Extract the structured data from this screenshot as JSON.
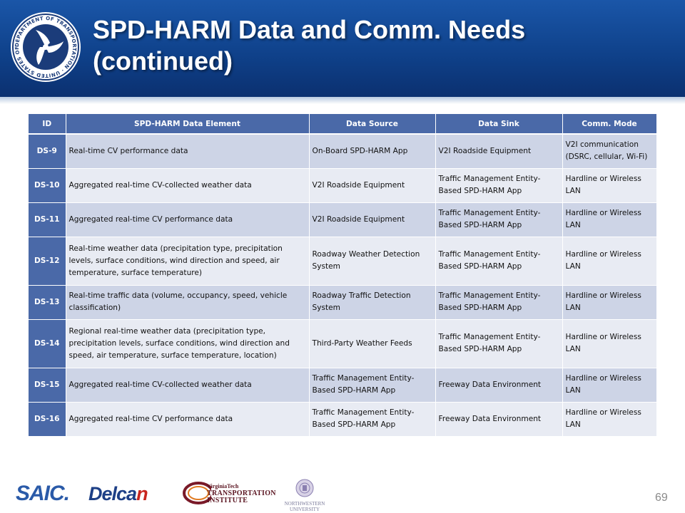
{
  "slide": {
    "title_line1": "SPD-HARM Data and Comm. Needs",
    "title_line2": "(continued)",
    "page_number": "69"
  },
  "table": {
    "headers": [
      "ID",
      "SPD-HARM Data Element",
      "Data Source",
      "Data Sink",
      "Comm. Mode"
    ],
    "rows": [
      {
        "id": "DS-9",
        "element": "Real-time CV performance data",
        "source": "On-Board SPD-HARM App",
        "sink": "V2I Roadside Equipment",
        "mode": "V2I communication (DSRC, cellular, Wi-Fi)"
      },
      {
        "id": "DS-10",
        "element": "Aggregated real-time CV-collected weather data",
        "source": "V2I Roadside Equipment",
        "sink": "Traffic Management Entity-Based SPD-HARM App",
        "mode": "Hardline or Wireless LAN"
      },
      {
        "id": "DS-11",
        "element": "Aggregated real-time CV performance data",
        "source": "V2I Roadside Equipment",
        "sink": "Traffic Management Entity-Based SPD-HARM App",
        "mode": "Hardline or Wireless LAN"
      },
      {
        "id": "DS-12",
        "element": "Real-time weather data (precipitation type, precipitation levels, surface conditions, wind direction and speed, air temperature, surface temperature)",
        "source": "Roadway Weather Detection System",
        "sink": "Traffic Management Entity-Based SPD-HARM App",
        "mode": "Hardline or Wireless LAN"
      },
      {
        "id": "DS-13",
        "element": "Real-time traffic data (volume, occupancy, speed, vehicle classification)",
        "source": "Roadway Traffic Detection System",
        "sink": "Traffic Management Entity-Based SPD-HARM App",
        "mode": "Hardline or Wireless LAN"
      },
      {
        "id": "DS-14",
        "element": "Regional real-time weather data (precipitation type, precipitation levels, surface conditions, wind direction and speed, air temperature, surface temperature, location)",
        "source": "Third-Party Weather Feeds",
        "sink": "Traffic Management Entity-Based SPD-HARM App",
        "mode": "Hardline or Wireless LAN"
      },
      {
        "id": "DS-15",
        "element": "Aggregated real-time CV-collected weather data",
        "source": "Traffic Management Entity-Based SPD-HARM App",
        "sink": "Freeway Data Environment",
        "mode": "Hardline or Wireless LAN"
      },
      {
        "id": "DS-16",
        "element": "Aggregated real-time CV performance data",
        "source": "Traffic Management Entity-Based SPD-HARM App",
        "sink": "Freeway Data Environment",
        "mode": "Hardline or Wireless LAN"
      }
    ]
  },
  "seal": {
    "ring_text": "DEPARTMENT OF TRANSPORTATION · UNITED STATES OF AMERICA",
    "icon": "dot-triskelion-icon"
  },
  "logos": {
    "saic": "SAIC.",
    "delcan_a": "Delca",
    "delcan_b": "n",
    "vtti_line1": "VirginiaTech",
    "vtti_line2": "TRANSPORTATION",
    "vtti_line3": "INSTITUTE",
    "nu_line1": "NORTHWESTERN",
    "nu_line2": "UNIVERSITY"
  },
  "colors": {
    "header_blue": "#0f418a",
    "table_header": "#4a69a8",
    "row_dark": "#cdd4e6",
    "row_light": "#e8ebf3"
  }
}
